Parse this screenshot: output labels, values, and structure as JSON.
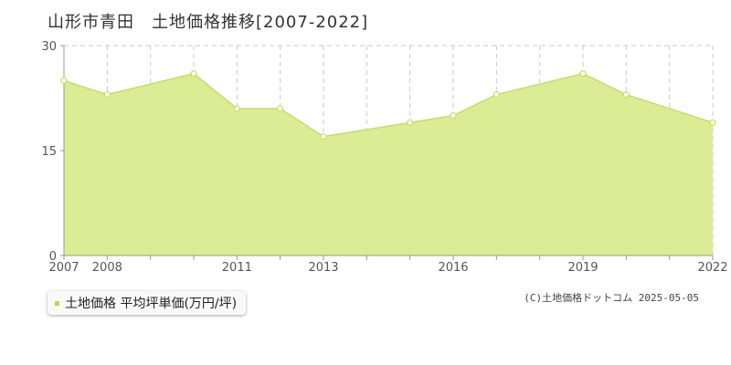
{
  "header": {
    "title": "山形市青田　土地価格推移[2007-2022]"
  },
  "legend": {
    "label": "土地価格 平均坪単価(万円/坪)"
  },
  "footer": {
    "copyright": "(C)土地価格ドットコム 2025-05-05"
  },
  "colors": {
    "fill": "#dcec94",
    "line": "#c4e05a",
    "marker_fill": "#ffffff",
    "grid": "#c8c8c8",
    "axis": "#999999",
    "legend_swatch": "#b9d84a"
  },
  "chart_data": {
    "type": "area",
    "title": "山形市青田　土地価格推移[2007-2022]",
    "xlabel": "",
    "ylabel": "",
    "x": [
      2007,
      2008,
      2009,
      2010,
      2011,
      2012,
      2013,
      2014,
      2015,
      2016,
      2017,
      2018,
      2019,
      2020,
      2021,
      2022
    ],
    "x_tick_labels": [
      "2007",
      "2008",
      "2011",
      "2013",
      "2016",
      "2019",
      "2022"
    ],
    "x_tick_values": [
      2007,
      2008,
      2011,
      2013,
      2016,
      2019,
      2022
    ],
    "y_tick_labels": [
      "0",
      "15",
      "30"
    ],
    "y_tick_values": [
      0,
      15,
      30
    ],
    "xlim": [
      2007,
      2022
    ],
    "ylim": [
      0,
      30
    ],
    "grid": true,
    "legend_position": "bottom-left",
    "series": [
      {
        "name": "土地価格 平均坪単価(万円/坪)",
        "points": [
          {
            "x": 2007,
            "y": 25
          },
          {
            "x": 2008,
            "y": 23
          },
          {
            "x": 2010,
            "y": 26
          },
          {
            "x": 2011,
            "y": 21
          },
          {
            "x": 2012,
            "y": 21
          },
          {
            "x": 2013,
            "y": 17
          },
          {
            "x": 2015,
            "y": 19
          },
          {
            "x": 2016,
            "y": 20
          },
          {
            "x": 2017,
            "y": 23
          },
          {
            "x": 2019,
            "y": 26
          },
          {
            "x": 2020,
            "y": 23
          },
          {
            "x": 2022,
            "y": 19
          }
        ]
      }
    ]
  }
}
